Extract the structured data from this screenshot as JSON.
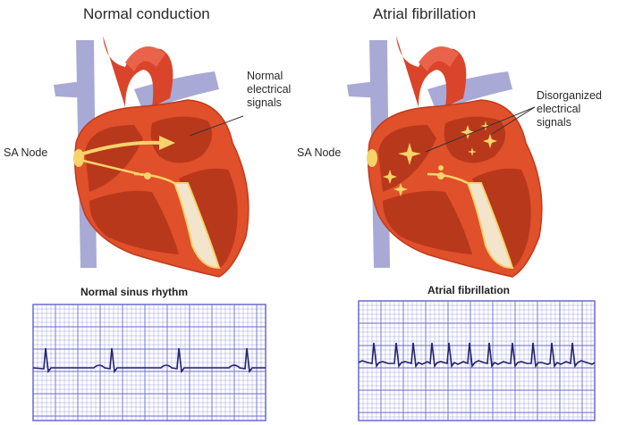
{
  "left": {
    "title": "Normal conduction",
    "sa_node_label": "SA Node",
    "signals_label": [
      "Normal",
      "electrical",
      "signals"
    ],
    "ecg_title": "Normal sinus rhythm"
  },
  "right": {
    "title": "Atrial fibrillation",
    "sa_node_label": "SA Node",
    "signals_label": [
      "Disorganized",
      "electrical",
      "signals"
    ],
    "ecg_title": "Atrial fibrillation"
  },
  "colors": {
    "heart_wall": "#e0502a",
    "heart_chamber": "#b8381c",
    "vein": "#a9a9d6",
    "conduction": "#f7d36a",
    "ecg_grid": "#6a6ad0",
    "ecg_trace": "#23236e"
  }
}
